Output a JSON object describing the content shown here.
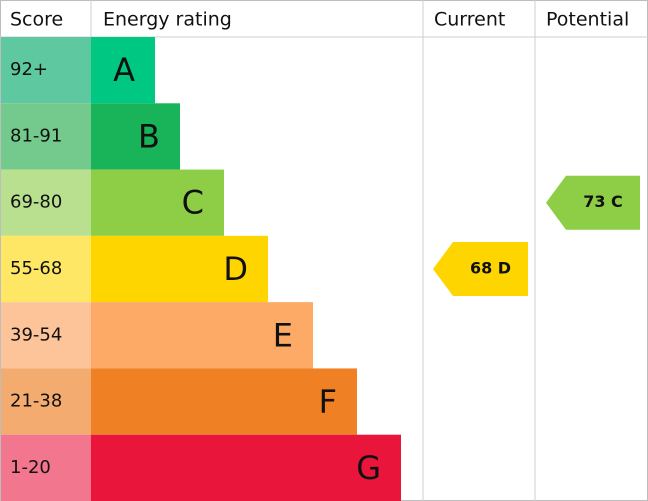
{
  "header": {
    "score": "Score",
    "rating": "Energy rating",
    "current": "Current",
    "potential": "Potential"
  },
  "bands": [
    {
      "score": "92+",
      "letter": "A",
      "color": "#00c781",
      "score_color": "#5ec8a0"
    },
    {
      "score": "81-91",
      "letter": "B",
      "color": "#19b459",
      "score_color": "#74c98d"
    },
    {
      "score": "69-80",
      "letter": "C",
      "color": "#8dce46",
      "score_color": "#b8e08f"
    },
    {
      "score": "55-68",
      "letter": "D",
      "color": "#ffd500",
      "score_color": "#ffe766"
    },
    {
      "score": "39-54",
      "letter": "E",
      "color": "#fcaa65",
      "score_color": "#fdc49a"
    },
    {
      "score": "21-38",
      "letter": "F",
      "color": "#ef8023",
      "score_color": "#f4ab70"
    },
    {
      "score": "1-20",
      "letter": "G",
      "color": "#e9153b",
      "score_color": "#f2768e"
    }
  ],
  "current": {
    "text": "68 D",
    "band": "D"
  },
  "potential": {
    "text": "73 C",
    "band": "C"
  }
}
